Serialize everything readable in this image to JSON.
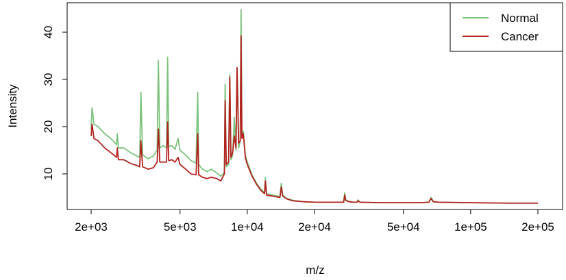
{
  "chart_data": {
    "type": "line",
    "title": "",
    "xlabel": "m/z",
    "ylabel": "Intensity",
    "x_scale": "log",
    "xlim": [
      2000,
      200000
    ],
    "ylim": [
      3,
      46
    ],
    "x_ticks": [
      {
        "value": 2000,
        "label": "2e+03"
      },
      {
        "value": 5000,
        "label": "5e+03"
      },
      {
        "value": 10000,
        "label": "1e+04"
      },
      {
        "value": 20000,
        "label": "2e+04"
      },
      {
        "value": 50000,
        "label": "5e+04"
      },
      {
        "value": 100000,
        "label": "1e+05"
      },
      {
        "value": 200000,
        "label": "2e+05"
      }
    ],
    "y_ticks": [
      {
        "value": 10,
        "label": "10"
      },
      {
        "value": 20,
        "label": "20"
      },
      {
        "value": 30,
        "label": "30"
      },
      {
        "value": 40,
        "label": "40"
      }
    ],
    "legend_position": "top-right",
    "grid": false,
    "series": [
      {
        "name": "Normal",
        "color": "#7cc27c",
        "x": [
          2000,
          2020,
          2060,
          2150,
          2300,
          2450,
          2600,
          2620,
          2650,
          2800,
          3000,
          3200,
          3300,
          3340,
          3400,
          3600,
          3800,
          3950,
          4000,
          4060,
          4200,
          4350,
          4400,
          4450,
          4600,
          4750,
          4900,
          5000,
          5300,
          5600,
          5900,
          6000,
          6060,
          6300,
          6600,
          6900,
          7300,
          7600,
          7800,
          7900,
          7960,
          8050,
          8250,
          8350,
          8450,
          8600,
          8750,
          8900,
          9000,
          9150,
          9300,
          9380,
          9460,
          9600,
          9800,
          10000,
          10500,
          11000,
          11500,
          11950,
          12050,
          12200,
          13000,
          14000,
          14200,
          14400,
          15000,
          16000,
          18000,
          20000,
          22000,
          25000,
          27000,
          27300,
          27600,
          28500,
          30000,
          31000,
          31300,
          32000,
          40000,
          50000,
          60000,
          65000,
          66500,
          68000,
          72000,
          100000,
          150000,
          200000
        ],
        "values": [
          19.5,
          24.0,
          20.5,
          20.0,
          18.5,
          17.5,
          16.2,
          18.5,
          15.5,
          15.5,
          14.5,
          13.8,
          13.5,
          27.3,
          14.0,
          13.2,
          13.8,
          15.0,
          34.0,
          15.5,
          16.0,
          15.5,
          34.7,
          15.8,
          16.0,
          15.2,
          17.5,
          15.0,
          14.0,
          12.8,
          12.3,
          27.3,
          12.0,
          11.0,
          10.5,
          11.0,
          10.2,
          9.5,
          10.0,
          10.5,
          29.0,
          11.5,
          12.0,
          31.0,
          13.0,
          14.0,
          22.0,
          15.0,
          32.5,
          15.5,
          17.0,
          44.8,
          18.0,
          19.0,
          14.0,
          12.5,
          9.8,
          8.0,
          6.8,
          6.0,
          9.2,
          5.8,
          5.5,
          5.2,
          8.0,
          5.5,
          4.8,
          4.4,
          4.1,
          4.0,
          4.0,
          4.0,
          4.0,
          6.0,
          4.5,
          4.2,
          4.0,
          4.0,
          4.5,
          4.0,
          3.9,
          3.9,
          3.9,
          4.0,
          5.0,
          4.2,
          4.0,
          3.9,
          3.8,
          3.8
        ]
      },
      {
        "name": "Cancer",
        "color": "#b2221e",
        "x": [
          2000,
          2020,
          2060,
          2150,
          2300,
          2450,
          2600,
          2620,
          2650,
          2800,
          3000,
          3200,
          3300,
          3340,
          3400,
          3600,
          3800,
          3950,
          4000,
          4060,
          4200,
          4350,
          4400,
          4450,
          4600,
          4750,
          4900,
          5000,
          5300,
          5600,
          5900,
          6000,
          6060,
          6300,
          6600,
          6900,
          7300,
          7600,
          7800,
          7900,
          7960,
          8050,
          8250,
          8350,
          8450,
          8600,
          8750,
          8900,
          9000,
          9150,
          9300,
          9380,
          9460,
          9600,
          9800,
          10000,
          10500,
          11000,
          11500,
          11950,
          12050,
          12200,
          13000,
          14000,
          14200,
          14400,
          15000,
          16000,
          18000,
          20000,
          22000,
          25000,
          27000,
          27300,
          27600,
          28500,
          30000,
          31000,
          31300,
          32000,
          40000,
          50000,
          60000,
          65000,
          66500,
          68000,
          72000,
          100000,
          150000,
          200000
        ],
        "values": [
          18.0,
          20.5,
          17.5,
          17.0,
          15.5,
          14.5,
          13.5,
          15.5,
          13.0,
          13.0,
          12.2,
          11.8,
          11.5,
          17.0,
          11.5,
          11.0,
          11.3,
          12.5,
          19.5,
          12.5,
          12.5,
          12.5,
          21.0,
          12.8,
          13.0,
          12.5,
          13.5,
          12.0,
          11.0,
          10.0,
          9.8,
          18.5,
          9.8,
          9.3,
          9.0,
          9.3,
          9.0,
          8.5,
          9.5,
          10.0,
          25.5,
          12.0,
          12.5,
          30.5,
          13.5,
          14.5,
          18.0,
          15.5,
          32.5,
          16.5,
          17.0,
          39.2,
          17.5,
          18.5,
          13.5,
          12.0,
          9.5,
          7.8,
          6.5,
          5.8,
          8.5,
          5.5,
          5.3,
          5.0,
          7.2,
          5.3,
          4.7,
          4.3,
          4.1,
          4.0,
          4.0,
          4.0,
          4.0,
          5.5,
          4.4,
          4.1,
          4.0,
          4.0,
          4.3,
          4.0,
          3.9,
          3.9,
          3.9,
          4.0,
          4.8,
          4.1,
          4.0,
          3.9,
          3.8,
          3.8
        ]
      }
    ]
  }
}
